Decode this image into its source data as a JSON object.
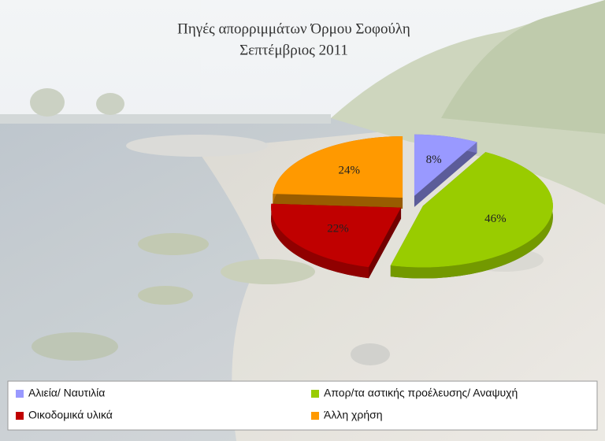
{
  "chart_data": {
    "type": "pie",
    "title": "Πηγές απορριμμάτων Όρμου Σοφούλη",
    "subtitle": "Σεπτέμβριος 2011",
    "categories": [
      "Αλιεία/ Ναυτιλία",
      "Απορ/τα αστικής προέλευσης/ Αναψυχή",
      "Οικοδομικά υλικά",
      "Άλλη χρήση"
    ],
    "values": [
      8,
      46,
      22,
      24
    ],
    "value_labels": [
      "8%",
      "46%",
      "22%",
      "24%"
    ],
    "colors": [
      "#9999ff",
      "#99cc00",
      "#c00000",
      "#ff9900"
    ],
    "legend": "bottom"
  }
}
